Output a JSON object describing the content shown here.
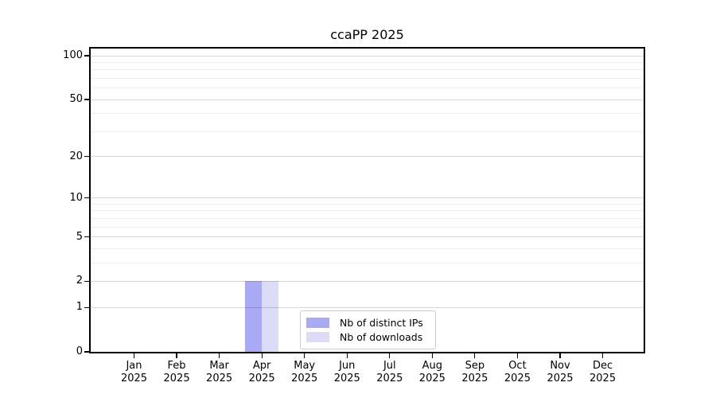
{
  "chart_data": {
    "type": "bar",
    "title": "ccaPP 2025",
    "categories": [
      "Jan",
      "Feb",
      "Mar",
      "Apr",
      "May",
      "Jun",
      "Jul",
      "Aug",
      "Sep",
      "Oct",
      "Nov",
      "Dec"
    ],
    "xtick_year": "2025",
    "series": [
      {
        "name": "Nb of distinct IPs",
        "color": "#a9a9f5",
        "values": [
          0,
          0,
          0,
          2,
          0,
          0,
          0,
          0,
          0,
          0,
          0,
          0
        ]
      },
      {
        "name": "Nb of downloads",
        "color": "#dcdcf8",
        "values": [
          0,
          0,
          0,
          2,
          0,
          0,
          0,
          0,
          0,
          0,
          0,
          0
        ]
      }
    ],
    "yscale": "log1p",
    "ylim": [
      0,
      113
    ],
    "yticks": [
      0,
      1,
      2,
      5,
      10,
      20,
      50,
      100
    ],
    "ytick_labels": [
      "0",
      "1",
      "2",
      "5",
      "10",
      "20",
      "50",
      "100"
    ],
    "yticks_minor": [
      3,
      4,
      6,
      7,
      8,
      9,
      30,
      40,
      60,
      70,
      80,
      90
    ],
    "grid": "horizontal",
    "legend": {
      "position": "inside-bottom-center",
      "entries": [
        "Nb of distinct IPs",
        "Nb of downloads"
      ]
    },
    "colors": {
      "bar_distinct_ips": "#a9a9f5",
      "bar_downloads": "#dcdcf8",
      "grid_major": "rgba(0,0,0,0.16)",
      "grid_minor": "rgba(0,0,0,0.07)",
      "axis": "#000000",
      "text": "#000000",
      "legend_border": "#cccccc",
      "background": "#ffffff"
    }
  }
}
